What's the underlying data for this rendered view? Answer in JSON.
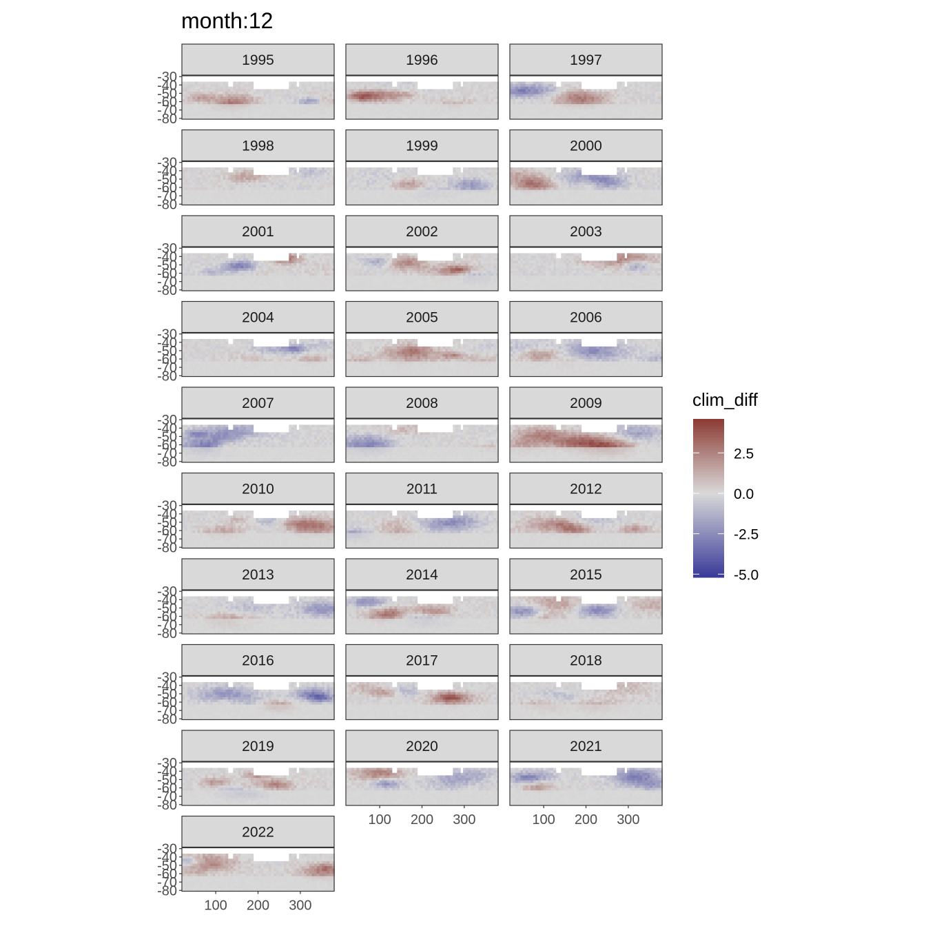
{
  "title": "month:12",
  "chart_data": {
    "type": "heatmap",
    "facet_by": "year",
    "facet_columns": 3,
    "panels": [
      "1995",
      "1996",
      "1997",
      "1998",
      "1999",
      "2000",
      "2001",
      "2002",
      "2003",
      "2004",
      "2005",
      "2006",
      "2007",
      "2008",
      "2009",
      "2010",
      "2011",
      "2012",
      "2013",
      "2014",
      "2015",
      "2016",
      "2017",
      "2018",
      "2019",
      "2020",
      "2021",
      "2022"
    ],
    "x_ticks": [
      "100",
      "200",
      "300"
    ],
    "x_tick_values": [
      100,
      200,
      300
    ],
    "y_ticks": [
      "-30",
      "-40",
      "-50",
      "-60",
      "-70",
      "-80"
    ],
    "y_tick_values": [
      -30,
      -40,
      -50,
      -60,
      -70,
      -80
    ],
    "xlim": [
      20,
      380
    ],
    "ylim": [
      -81,
      -29
    ],
    "fill_variable": "clim_diff",
    "legend": {
      "title": "clim_diff",
      "labels": [
        "2.5",
        "0.0",
        "-2.5",
        "-5.0"
      ],
      "breaks": [
        2.5,
        0.0,
        -2.5,
        -5.0
      ],
      "limits": [
        -5.2,
        4.6
      ],
      "colors": [
        "#8c3a33",
        "#d9d9d9",
        "#3a3a99"
      ],
      "position": "right"
    },
    "grid": true
  }
}
